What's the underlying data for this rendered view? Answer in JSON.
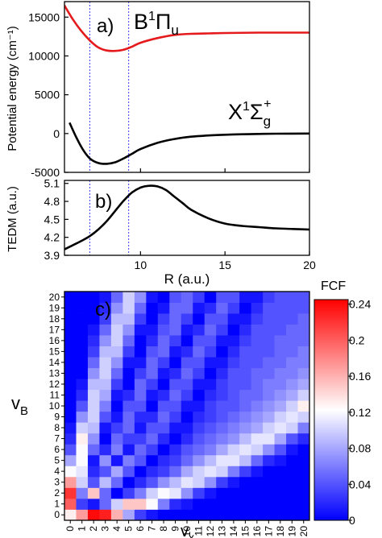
{
  "chart_data": [
    {
      "panel_label": "a)",
      "type": "line",
      "ylabel": "Potential energy (cm⁻¹)",
      "xlim": [
        5.5,
        20
      ],
      "ylim": [
        -5000,
        17000
      ],
      "yticks": [
        "-5000",
        "0",
        "5000",
        "10000",
        "15000"
      ],
      "ytick_values": [
        -5000,
        0,
        5000,
        10000,
        15000
      ],
      "grid": false,
      "series": [
        {
          "state_label": "B¹Πu",
          "state_main": "B",
          "state_sup": "1",
          "state_greek": "Π",
          "state_sub": "u",
          "color": "#e41a1c",
          "x": [
            5.5,
            6.0,
            6.5,
            7.0,
            7.5,
            8.0,
            8.5,
            9.0,
            9.5,
            10.0,
            11.0,
            12.0,
            13.0,
            14.0,
            15.0,
            17.0,
            20.0
          ],
          "y": [
            16500,
            14700,
            13200,
            12000,
            11100,
            10700,
            10650,
            10800,
            11200,
            11700,
            12300,
            12700,
            12850,
            12900,
            12950,
            13000,
            13000
          ]
        },
        {
          "state_label": "X¹Σg⁺",
          "state_main": "X",
          "state_sup": "1",
          "state_greek": "Σ",
          "state_sub": "g",
          "state_sup2": "+",
          "color": "#000000",
          "x": [
            5.8,
            6.2,
            6.6,
            7.0,
            7.5,
            8.0,
            8.5,
            9.0,
            9.5,
            10.0,
            11.0,
            12.0,
            13.0,
            14.0,
            15.0,
            16.0,
            17.0,
            18.0,
            20.0
          ],
          "y": [
            1400,
            -500,
            -2100,
            -3200,
            -3800,
            -3900,
            -3700,
            -3200,
            -2600,
            -2000,
            -1200,
            -700,
            -400,
            -250,
            -150,
            -90,
            -50,
            -20,
            0
          ]
        }
      ],
      "vlines": [
        7.0,
        9.3
      ]
    },
    {
      "panel_label": "b)",
      "type": "line",
      "xlabel": "R (a.u.)",
      "ylabel": "TEDM (a.u.)",
      "xlim": [
        5.5,
        20
      ],
      "ylim": [
        3.9,
        5.15
      ],
      "xticks": [
        "10",
        "15",
        "20"
      ],
      "xtick_values": [
        10,
        15,
        20
      ],
      "yticks": [
        "3.9",
        "4.2",
        "4.5",
        "4.8",
        "5.1"
      ],
      "ytick_values": [
        3.9,
        4.2,
        4.5,
        4.8,
        5.1
      ],
      "grid": false,
      "series": [
        {
          "color": "#000000",
          "x": [
            5.5,
            6.0,
            6.5,
            7.0,
            7.5,
            8.0,
            8.5,
            9.0,
            9.5,
            10.0,
            10.5,
            11.0,
            11.5,
            12.0,
            12.5,
            13.0,
            14.0,
            15.0,
            16.0,
            17.0,
            18.0,
            19.0,
            20.0
          ],
          "y": [
            4.0,
            4.07,
            4.14,
            4.22,
            4.33,
            4.47,
            4.64,
            4.81,
            4.95,
            5.03,
            5.06,
            5.05,
            4.99,
            4.88,
            4.77,
            4.66,
            4.52,
            4.43,
            4.39,
            4.37,
            4.35,
            4.34,
            4.33
          ]
        }
      ],
      "vlines": [
        7.0,
        9.3
      ]
    },
    {
      "panel_label": "c)",
      "type": "heatmap",
      "xlabel": "vx",
      "xlabel_main": "v",
      "xlabel_sub": "x",
      "ylabel": "vB",
      "ylabel_main": "v",
      "ylabel_sub": "B",
      "x_categories": [
        "0",
        "1",
        "2",
        "3",
        "4",
        "5",
        "6",
        "7",
        "8",
        "9",
        "10",
        "11",
        "12",
        "13",
        "14",
        "15",
        "16",
        "17",
        "18",
        "19",
        "20"
      ],
      "y_categories": [
        "0",
        "1",
        "2",
        "3",
        "4",
        "5",
        "6",
        "7",
        "8",
        "9",
        "10",
        "11",
        "12",
        "13",
        "14",
        "15",
        "16",
        "17",
        "18",
        "19",
        "20"
      ],
      "colorbar_title": "FCF",
      "colorbar_ticks": [
        "0",
        "0.04",
        "0.08",
        "0.12",
        "0.16",
        "0.2",
        "0.24"
      ],
      "colorbar_tick_values": [
        0,
        0.04,
        0.08,
        0.12,
        0.16,
        0.2,
        0.24
      ],
      "value_range": [
        0,
        0.245
      ],
      "colormap": [
        "#0000ff",
        "#ffffff",
        "#ff0000"
      ],
      "values_note": "values[vB][vx]",
      "values": [
        [
          0.13,
          0.17,
          0.24,
          0.23,
          0.16,
          0.08,
          0.03,
          0.01,
          0.0,
          0.0,
          0.0,
          0.0,
          0.0,
          0.0,
          0.0,
          0.0,
          0.0,
          0.0,
          0.0,
          0.0,
          0.0
        ],
        [
          0.2,
          0.03,
          0.01,
          0.05,
          0.1,
          0.15,
          0.15,
          0.12,
          0.06,
          0.02,
          0.01,
          0.0,
          0.0,
          0.0,
          0.0,
          0.0,
          0.0,
          0.0,
          0.0,
          0.0,
          0.0
        ],
        [
          0.22,
          0.06,
          0.15,
          0.05,
          0.0,
          0.03,
          0.06,
          0.1,
          0.12,
          0.11,
          0.07,
          0.03,
          0.01,
          0.0,
          0.0,
          0.0,
          0.0,
          0.0,
          0.0,
          0.0,
          0.0
        ],
        [
          0.17,
          0.1,
          0.04,
          0.09,
          0.05,
          0.0,
          0.02,
          0.04,
          0.07,
          0.09,
          0.11,
          0.1,
          0.07,
          0.03,
          0.01,
          0.0,
          0.0,
          0.0,
          0.0,
          0.0,
          0.0
        ],
        [
          0.12,
          0.11,
          0.02,
          0.04,
          0.08,
          0.04,
          0.0,
          0.02,
          0.03,
          0.05,
          0.08,
          0.1,
          0.11,
          0.1,
          0.06,
          0.03,
          0.01,
          0.0,
          0.0,
          0.0,
          0.0
        ],
        [
          0.08,
          0.12,
          0.01,
          0.07,
          0.01,
          0.06,
          0.04,
          0.0,
          0.02,
          0.03,
          0.05,
          0.07,
          0.09,
          0.11,
          0.11,
          0.09,
          0.05,
          0.02,
          0.01,
          0.0,
          0.0
        ],
        [
          0.04,
          0.12,
          0.05,
          0.02,
          0.06,
          0.01,
          0.05,
          0.03,
          0.0,
          0.02,
          0.04,
          0.05,
          0.06,
          0.08,
          0.1,
          0.11,
          0.1,
          0.07,
          0.04,
          0.01,
          0.0
        ],
        [
          0.02,
          0.13,
          0.07,
          0.0,
          0.05,
          0.03,
          0.03,
          0.05,
          0.02,
          0.0,
          0.02,
          0.04,
          0.05,
          0.06,
          0.07,
          0.09,
          0.11,
          0.11,
          0.08,
          0.04,
          0.02
        ],
        [
          0.01,
          0.1,
          0.09,
          0.01,
          0.03,
          0.05,
          0.01,
          0.04,
          0.04,
          0.01,
          0.01,
          0.03,
          0.04,
          0.05,
          0.06,
          0.07,
          0.08,
          0.1,
          0.11,
          0.1,
          0.06
        ],
        [
          0.0,
          0.07,
          0.1,
          0.04,
          0.01,
          0.05,
          0.02,
          0.02,
          0.05,
          0.03,
          0.0,
          0.02,
          0.03,
          0.04,
          0.05,
          0.06,
          0.07,
          0.08,
          0.1,
          0.11,
          0.1
        ],
        [
          0.0,
          0.04,
          0.1,
          0.06,
          0.0,
          0.04,
          0.04,
          0.0,
          0.04,
          0.04,
          0.01,
          0.01,
          0.03,
          0.04,
          0.04,
          0.05,
          0.06,
          0.07,
          0.08,
          0.1,
          0.13
        ],
        [
          0.0,
          0.02,
          0.1,
          0.08,
          0.01,
          0.02,
          0.05,
          0.01,
          0.02,
          0.05,
          0.03,
          0.0,
          0.02,
          0.03,
          0.04,
          0.05,
          0.05,
          0.06,
          0.07,
          0.08,
          0.1
        ],
        [
          0.0,
          0.01,
          0.09,
          0.09,
          0.03,
          0.0,
          0.05,
          0.03,
          0.0,
          0.04,
          0.04,
          0.01,
          0.01,
          0.03,
          0.04,
          0.04,
          0.05,
          0.06,
          0.06,
          0.07,
          0.08
        ],
        [
          0.0,
          0.0,
          0.07,
          0.1,
          0.05,
          0.0,
          0.03,
          0.05,
          0.01,
          0.02,
          0.05,
          0.03,
          0.0,
          0.02,
          0.04,
          0.04,
          0.05,
          0.05,
          0.06,
          0.06,
          0.07
        ],
        [
          0.0,
          0.0,
          0.05,
          0.1,
          0.07,
          0.01,
          0.01,
          0.05,
          0.03,
          0.0,
          0.04,
          0.04,
          0.01,
          0.01,
          0.03,
          0.04,
          0.04,
          0.05,
          0.05,
          0.06,
          0.06
        ],
        [
          0.0,
          0.0,
          0.03,
          0.09,
          0.09,
          0.03,
          0.0,
          0.04,
          0.05,
          0.01,
          0.02,
          0.05,
          0.03,
          0.0,
          0.02,
          0.04,
          0.04,
          0.04,
          0.05,
          0.05,
          0.06
        ],
        [
          0.0,
          0.0,
          0.02,
          0.07,
          0.1,
          0.05,
          0.0,
          0.02,
          0.05,
          0.03,
          0.0,
          0.04,
          0.04,
          0.01,
          0.01,
          0.03,
          0.04,
          0.04,
          0.05,
          0.05,
          0.05
        ],
        [
          0.0,
          0.0,
          0.01,
          0.05,
          0.1,
          0.07,
          0.01,
          0.01,
          0.04,
          0.05,
          0.01,
          0.02,
          0.05,
          0.03,
          0.0,
          0.02,
          0.04,
          0.04,
          0.04,
          0.05,
          0.05
        ],
        [
          0.0,
          0.0,
          0.0,
          0.03,
          0.09,
          0.09,
          0.03,
          0.0,
          0.03,
          0.05,
          0.03,
          0.0,
          0.04,
          0.04,
          0.01,
          0.01,
          0.03,
          0.04,
          0.04,
          0.04,
          0.05
        ],
        [
          0.0,
          0.0,
          0.0,
          0.02,
          0.07,
          0.1,
          0.05,
          0.0,
          0.01,
          0.05,
          0.05,
          0.01,
          0.02,
          0.05,
          0.03,
          0.0,
          0.02,
          0.04,
          0.04,
          0.04,
          0.04
        ],
        [
          0.0,
          0.0,
          0.0,
          0.01,
          0.05,
          0.1,
          0.07,
          0.01,
          0.0,
          0.04,
          0.05,
          0.03,
          0.0,
          0.04,
          0.04,
          0.01,
          0.01,
          0.03,
          0.04,
          0.04,
          0.04
        ]
      ]
    }
  ]
}
